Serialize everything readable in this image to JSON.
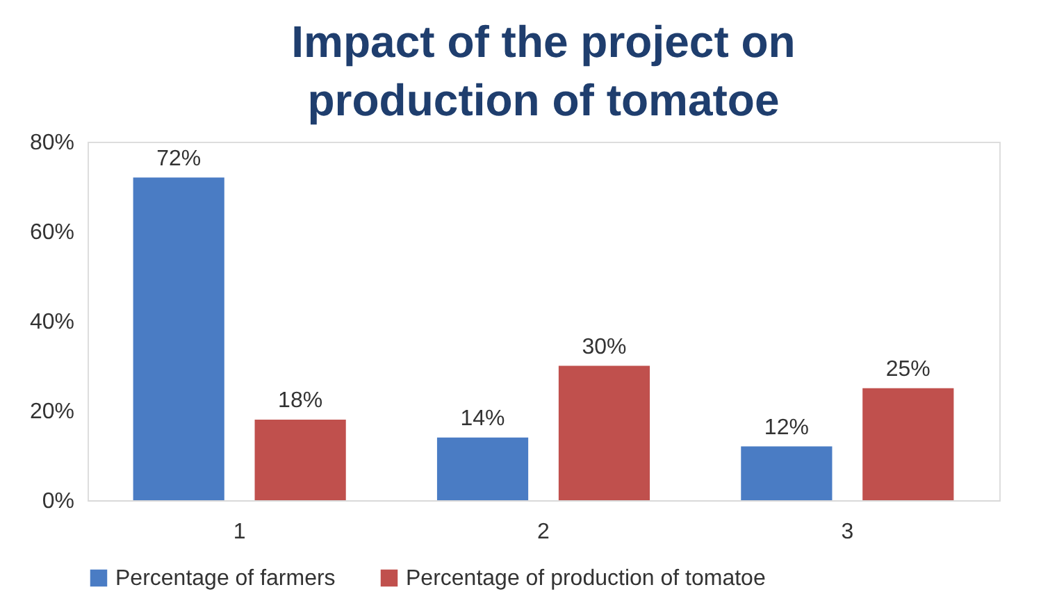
{
  "chart_data": {
    "type": "bar",
    "title": "Impact of the project on production of tomatoe",
    "categories": [
      "1",
      "2",
      "3"
    ],
    "series": [
      {
        "name": "Percentage of farmers",
        "color": "#4a7cc4",
        "values": [
          72,
          14,
          12
        ],
        "value_labels": [
          "72%",
          "14%",
          "12%"
        ]
      },
      {
        "name": "Percentage of production of tomatoe",
        "color": "#c0504d",
        "values": [
          18,
          30,
          25
        ],
        "value_labels": [
          "18%",
          "30%",
          "25%"
        ]
      }
    ],
    "ylim": [
      0,
      80
    ],
    "yticks": [
      {
        "value": 0,
        "label": "0%"
      },
      {
        "value": 20,
        "label": "20%"
      },
      {
        "value": 40,
        "label": "40%"
      },
      {
        "value": 60,
        "label": "60%"
      },
      {
        "value": 80,
        "label": "80%"
      }
    ],
    "grid": false,
    "legend": "bottom"
  }
}
